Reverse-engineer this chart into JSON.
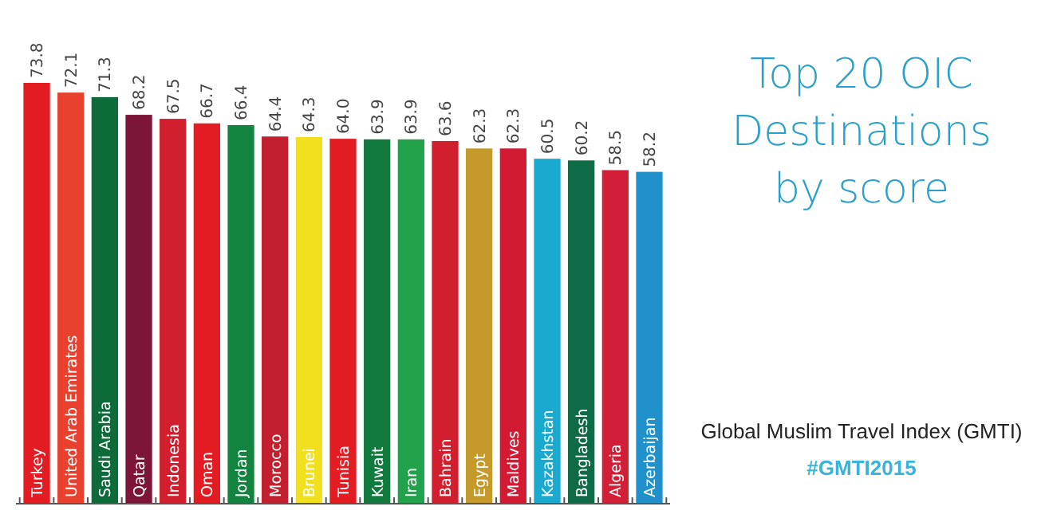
{
  "chart_data": {
    "type": "bar",
    "title": "Top 20 OIC Destinations by score",
    "subtitle": "Global Muslim Travel Index (GMTI)",
    "annotations": [
      "#GMTI2015"
    ],
    "categories": [
      "Turkey",
      "United Arab Emirates",
      "Saudi Arabia",
      "Qatar",
      "Indonesia",
      "Oman",
      "Jordan",
      "Morocco",
      "Brunei",
      "Tunisia",
      "Kuwait",
      "Iran",
      "Bahrain",
      "Egypt",
      "Maldives",
      "Kazakhstan",
      "Bangladesh",
      "Algeria",
      "Azerbaijan"
    ],
    "values": [
      73.8,
      72.1,
      71.3,
      68.2,
      67.5,
      66.7,
      66.4,
      64.4,
      64.3,
      64.0,
      63.9,
      63.9,
      63.6,
      62.3,
      62.3,
      60.5,
      60.2,
      58.5,
      58.2
    ],
    "value_labels": [
      "73.8",
      "72.1",
      "71.3",
      "68.2",
      "67.5",
      "66.7",
      "66.4",
      "64.4",
      "64.3",
      "64.0",
      "63.9",
      "63.9",
      "63.6",
      "62.3",
      "62.3",
      "60.5",
      "60.2",
      "58.5",
      "58.2"
    ],
    "colors": [
      "#e31b23",
      "#e8412e",
      "#0d6b3a",
      "#7d1538",
      "#d21f2e",
      "#e31b23",
      "#13843f",
      "#c2202f",
      "#f2e01e",
      "#e31b23",
      "#137a3d",
      "#22a24a",
      "#d21f2e",
      "#c69a2a",
      "#d21a33",
      "#1aa9cf",
      "#0e6b45",
      "#d21f37",
      "#2191cc"
    ]
  }
}
